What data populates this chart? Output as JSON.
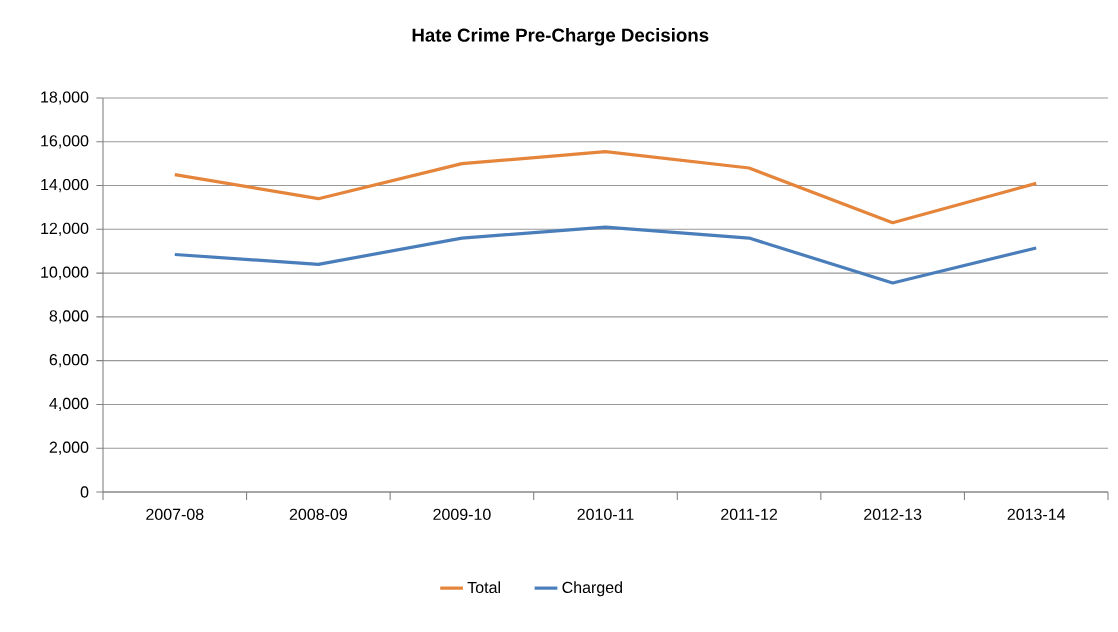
{
  "chart_data": {
    "type": "line",
    "title": "Hate Crime Pre-Charge Decisions",
    "categories": [
      "2007-08",
      "2008-09",
      "2009-10",
      "2010-11",
      "2011-12",
      "2012-13",
      "2013-14"
    ],
    "series": [
      {
        "name": "Total",
        "color": "#e4853b",
        "values": [
          14500,
          13400,
          15000,
          15550,
          14800,
          12300,
          14100
        ]
      },
      {
        "name": "Charged",
        "color": "#4a7ebb",
        "values": [
          10850,
          10400,
          11600,
          12100,
          11600,
          9550,
          11150
        ]
      }
    ],
    "ylim": [
      0,
      18000
    ],
    "yticks": [
      0,
      {
        "value": 2000,
        "label": "2,000"
      },
      {
        "value": 4000,
        "label": "4,000"
      },
      {
        "value": 6000,
        "label": "6,000"
      },
      {
        "value": 8000,
        "label": "8,000"
      },
      {
        "value": 10000,
        "label": "10,000"
      },
      {
        "value": 12000,
        "label": "12,000"
      },
      {
        "value": 14000,
        "label": "14,000"
      },
      {
        "value": 16000,
        "label": "16,000"
      },
      {
        "value": 18000,
        "label": "18,000"
      }
    ],
    "grid": "y",
    "legend": "bottom"
  }
}
